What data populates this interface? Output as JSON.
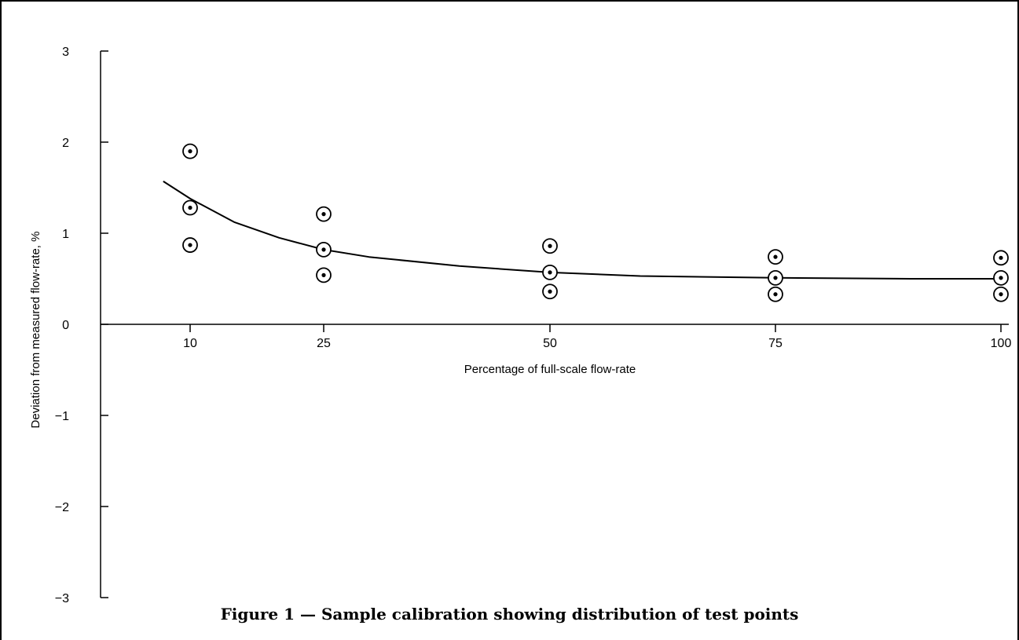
{
  "caption": "Figure 1 — Sample calibration showing distribution of test points",
  "chart_data": {
    "type": "scatter",
    "xlabel": "Percentage of full-scale flow-rate",
    "ylabel": "Deviation from measured flow-rate, %",
    "x_ticks": [
      "10",
      "25",
      "50",
      "75",
      "100"
    ],
    "y_ticks": [
      "3",
      "2",
      "1",
      "0",
      "−1",
      "−2",
      "−3"
    ],
    "ylim": [
      -3,
      3
    ],
    "grid": false,
    "points": [
      {
        "x": 10,
        "y": 1.9
      },
      {
        "x": 10,
        "y": 1.28
      },
      {
        "x": 10,
        "y": 0.87
      },
      {
        "x": 25,
        "y": 1.21
      },
      {
        "x": 25,
        "y": 0.82
      },
      {
        "x": 25,
        "y": 0.54
      },
      {
        "x": 50,
        "y": 0.86
      },
      {
        "x": 50,
        "y": 0.57
      },
      {
        "x": 50,
        "y": 0.36
      },
      {
        "x": 75,
        "y": 0.74
      },
      {
        "x": 75,
        "y": 0.51
      },
      {
        "x": 75,
        "y": 0.33
      },
      {
        "x": 100,
        "y": 0.73
      },
      {
        "x": 100,
        "y": 0.51
      },
      {
        "x": 100,
        "y": 0.33
      }
    ],
    "fit_curve": {
      "x": [
        7,
        10,
        15,
        20,
        25,
        30,
        40,
        50,
        60,
        75,
        90,
        100
      ],
      "y": [
        1.57,
        1.38,
        1.12,
        0.95,
        0.82,
        0.74,
        0.64,
        0.57,
        0.53,
        0.51,
        0.5,
        0.5
      ]
    }
  }
}
